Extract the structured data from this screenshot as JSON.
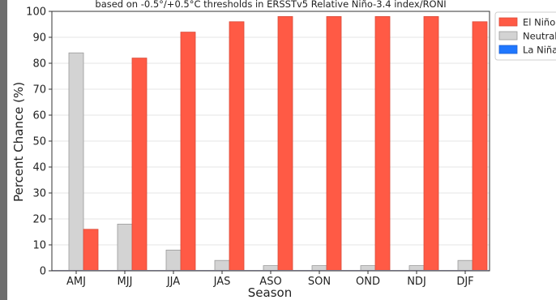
{
  "chart_data": {
    "type": "bar",
    "title": "based on -0.5°/+0.5°C thresholds in ERSSTv5 Relative Niño-3.4 index/RONI",
    "xlabel": "Season",
    "ylabel": "Percent Chance (%)",
    "ylim": [
      0,
      100
    ],
    "yticks": [
      0,
      10,
      20,
      30,
      40,
      50,
      60,
      70,
      80,
      90,
      100
    ],
    "grid": true,
    "legend_placement": "top-right",
    "categories": [
      "AMJ",
      "MJJ",
      "JJA",
      "JAS",
      "ASO",
      "SON",
      "OND",
      "NDJ",
      "DJF"
    ],
    "series": [
      {
        "name": "La Niña",
        "color": "#1f77ff",
        "values": [
          0,
          0,
          0,
          0,
          0,
          0,
          0,
          0,
          0
        ]
      },
      {
        "name": "Neutral",
        "color": "#d3d3d3",
        "values": [
          84,
          18,
          8,
          4,
          2,
          2,
          2,
          2,
          4
        ]
      },
      {
        "name": "El Niño",
        "color": "#ff5a45",
        "values": [
          16,
          82,
          92,
          96,
          98,
          98,
          98,
          98,
          96
        ]
      }
    ],
    "legend_order": [
      "El Niño",
      "Neutral",
      "La Niña"
    ]
  }
}
